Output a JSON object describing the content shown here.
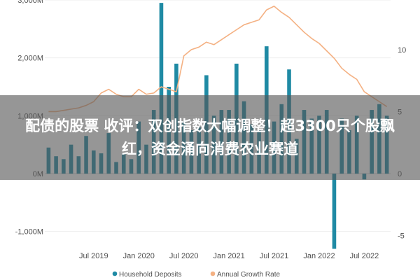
{
  "title_banner": {
    "text": "配债的股票 收评：双创指数大幅调整！超3300只个股飘红，资金涌向消费农业赛道"
  },
  "colors": {
    "bar": "#1f8aa4",
    "line": "#f4b183",
    "zero_line": "#d9d9d9",
    "grid": "#eeeeee"
  },
  "chart_data": {
    "type": "bar",
    "title": "",
    "xlabel": "",
    "ylabel": "",
    "y_left": {
      "range": [
        -1500,
        3000
      ],
      "ticks": [
        3000,
        2000,
        1000,
        0,
        -1000
      ],
      "tick_labels": [
        "3,000M",
        "2,000M",
        "1,000M",
        "0M",
        "-1,000M"
      ]
    },
    "y_right": {
      "range": [
        -7,
        14
      ],
      "ticks": [
        10,
        5,
        0,
        -5
      ],
      "tick_labels": [
        "10",
        "5",
        "0",
        "-5"
      ]
    },
    "x_axis": {
      "tick_labels": [
        "Jul 2019",
        "Jan 2020",
        "Jul 2020",
        "Jan 2021",
        "Jul 2021",
        "Jan 2022",
        "Jul 2022"
      ]
    },
    "categories": [
      "2019-01",
      "2019-02",
      "2019-03",
      "2019-04",
      "2019-05",
      "2019-06",
      "2019-07",
      "2019-08",
      "2019-09",
      "2019-10",
      "2019-11",
      "2019-12",
      "2020-01",
      "2020-02",
      "2020-03",
      "2020-04",
      "2020-05",
      "2020-06",
      "2020-07",
      "2020-08",
      "2020-09",
      "2020-10",
      "2020-11",
      "2020-12",
      "2021-01",
      "2021-02",
      "2021-03",
      "2021-04",
      "2021-05",
      "2021-06",
      "2021-07",
      "2021-08",
      "2021-09",
      "2021-10",
      "2021-11",
      "2021-12",
      "2022-01",
      "2022-02",
      "2022-03",
      "2022-04",
      "2022-05",
      "2022-06",
      "2022-07",
      "2022-08",
      "2022-09",
      "2022-10"
    ],
    "series": [
      {
        "name": "Household Deposits",
        "type": "bar",
        "axis": "left",
        "values": [
          450,
          300,
          250,
          500,
          300,
          650,
          400,
          350,
          700,
          200,
          350,
          250,
          900,
          500,
          1100,
          2950,
          1500,
          1900,
          900,
          750,
          800,
          1700,
          1000,
          1100,
          1100,
          1900,
          1250,
          850,
          750,
          2200,
          900,
          1200,
          1800,
          600,
          1100,
          950,
          1000,
          1100,
          -1300,
          950,
          750,
          1000,
          -100,
          1100,
          1200,
          1000
        ]
      },
      {
        "name": "Annual Growth Rate",
        "type": "line",
        "axis": "right",
        "values": [
          5.0,
          5.0,
          5.1,
          5.2,
          5.3,
          5.5,
          5.8,
          6.5,
          6.8,
          6.4,
          6.2,
          6.2,
          6.8,
          6.4,
          6.5,
          7.0,
          6.8,
          6.6,
          9.5,
          10.0,
          10.2,
          10.6,
          10.4,
          10.8,
          11.2,
          11.6,
          12.0,
          12.2,
          12.4,
          13.2,
          13.5,
          13.0,
          12.6,
          12.0,
          11.4,
          10.9,
          10.5,
          9.9,
          9.3,
          8.5,
          8.0,
          7.6,
          6.6,
          6.2,
          5.8,
          5.4
        ]
      }
    ],
    "legend": {
      "position": "bottom",
      "entries": [
        "Household Deposits",
        "Annual Growth Rate"
      ]
    },
    "grid": true
  }
}
